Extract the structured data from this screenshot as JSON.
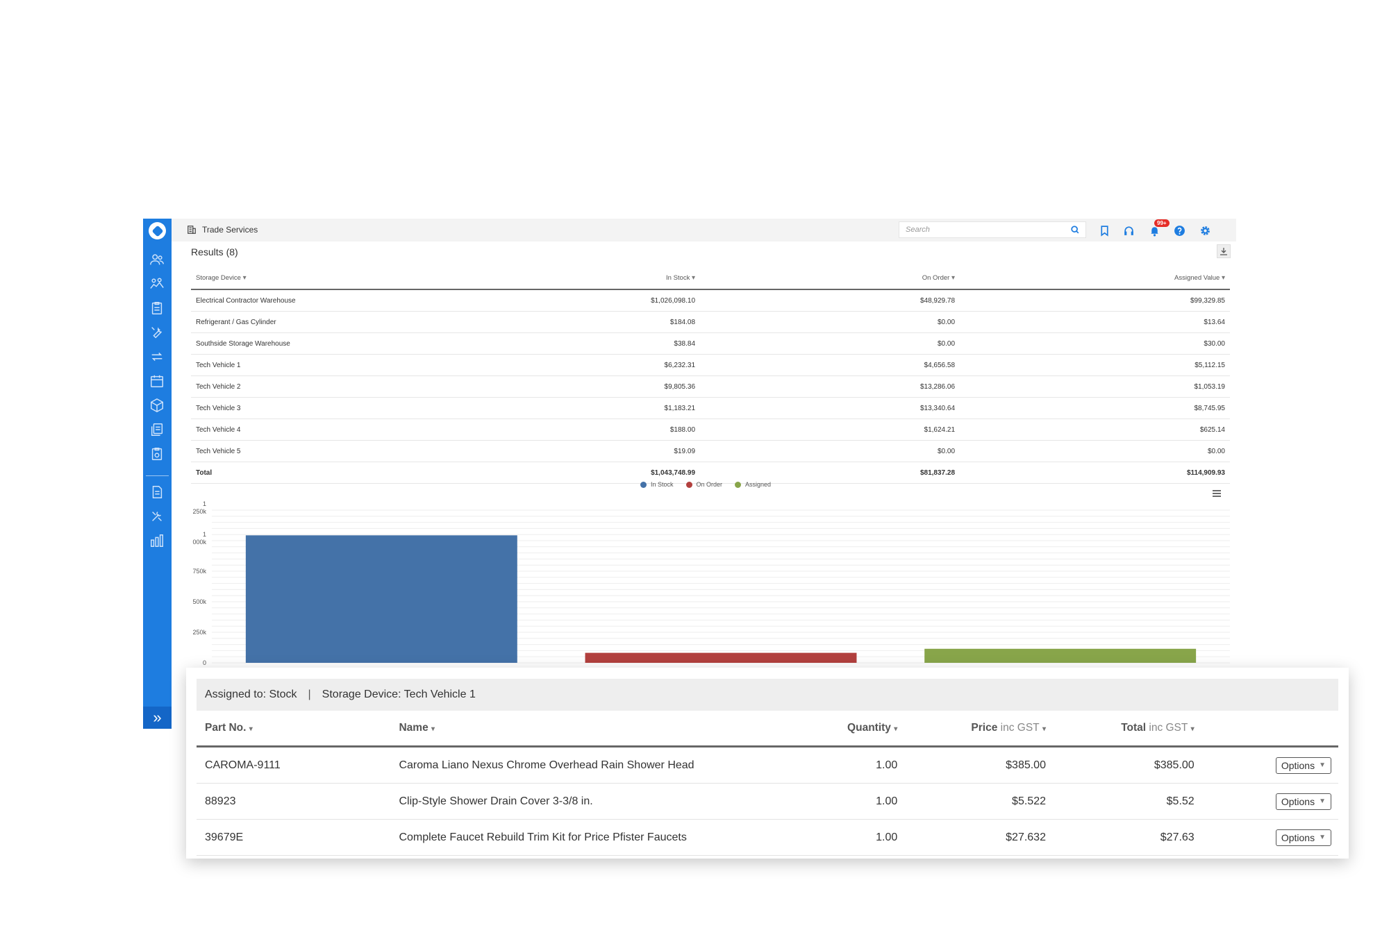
{
  "header": {
    "company": "Trade Services",
    "search_placeholder": "Search",
    "notification_badge": "99+"
  },
  "results": {
    "title": "Results (8)",
    "columns": [
      "Storage Device",
      "In Stock",
      "On Order",
      "Assigned Value"
    ],
    "rows": [
      [
        "Electrical Contractor Warehouse",
        "$1,026,098.10",
        "$48,929.78",
        "$99,329.85"
      ],
      [
        "Refrigerant / Gas Cylinder",
        "$184.08",
        "$0.00",
        "$13.64"
      ],
      [
        "Southside Storage Warehouse",
        "$38.84",
        "$0.00",
        "$30.00"
      ],
      [
        "Tech Vehicle 1",
        "$6,232.31",
        "$4,656.58",
        "$5,112.15"
      ],
      [
        "Tech Vehicle 2",
        "$9,805.36",
        "$13,286.06",
        "$1,053.19"
      ],
      [
        "Tech Vehicle 3",
        "$1,183.21",
        "$13,340.64",
        "$8,745.95"
      ],
      [
        "Tech Vehicle 4",
        "$188.00",
        "$1,624.21",
        "$625.14"
      ],
      [
        "Tech Vehicle 5",
        "$19.09",
        "$0.00",
        "$0.00"
      ]
    ],
    "total": [
      "Total",
      "$1,043,748.99",
      "$81,837.28",
      "$114,909.93"
    ]
  },
  "chart_data": {
    "type": "bar",
    "series": [
      {
        "name": "In Stock",
        "values": [
          1043748.99
        ],
        "color": "#4472a8"
      },
      {
        "name": "On Order",
        "values": [
          81837.28
        ],
        "color": "#b2403e"
      },
      {
        "name": "Assigned",
        "values": [
          114909.93
        ],
        "color": "#88a54a"
      }
    ],
    "y_ticks": [
      "0",
      "250k",
      "500k",
      "750k",
      "1\n000k",
      "1\n250k"
    ],
    "y_tick_values": [
      0,
      250000,
      500000,
      750000,
      1000000,
      1250000
    ],
    "ylim": [
      0,
      1250000
    ],
    "legend_position": "top-center",
    "grid": true
  },
  "overlay": {
    "assigned_to": "Assigned to: Stock",
    "separator": "|",
    "storage_device": "Storage Device: Tech Vehicle 1",
    "columns": {
      "part_no": "Part No.",
      "name": "Name",
      "quantity": "Quantity",
      "price": "Price",
      "price_suffix": "inc GST",
      "total": "Total",
      "total_suffix": "inc GST"
    },
    "rows": [
      {
        "part_no": "CAROMA-9111",
        "name": "Caroma Liano Nexus Chrome Overhead Rain Shower Head",
        "quantity": "1.00",
        "price": "$385.00",
        "total": "$385.00",
        "options": "Options"
      },
      {
        "part_no": "88923",
        "name": "Clip-Style Shower Drain Cover 3-3/8 in.",
        "quantity": "1.00",
        "price": "$5.522",
        "total": "$5.52",
        "options": "Options"
      },
      {
        "part_no": "39679E",
        "name": "Complete Faucet Rebuild Trim Kit for Price Pfister Faucets",
        "quantity": "1.00",
        "price": "$27.632",
        "total": "$27.63",
        "options": "Options"
      }
    ]
  },
  "icons": {
    "sidebar": [
      "users-icon",
      "team-icon",
      "clipboard-icon",
      "wrench-icon",
      "sync-icon",
      "calendar-icon",
      "box-icon",
      "documents-icon",
      "checklist-icon",
      "report-icon",
      "tools-icon",
      "bar-chart-icon"
    ],
    "topbar": [
      "bookmark-icon",
      "headset-icon",
      "bell-icon",
      "help-icon",
      "gear-icon"
    ]
  }
}
